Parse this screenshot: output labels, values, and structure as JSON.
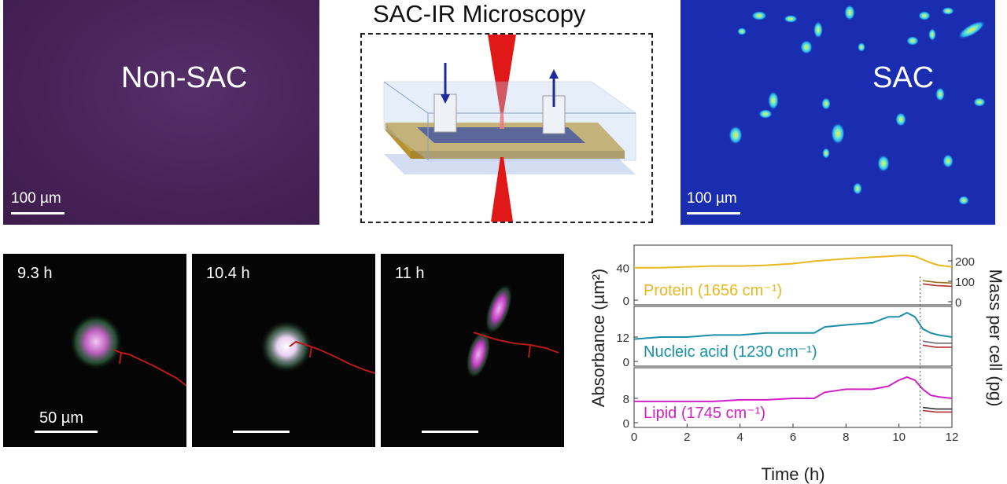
{
  "top": {
    "non_sac": {
      "label": "Non-SAC",
      "scale": "100 µm",
      "bg": "#4a2658"
    },
    "microscopy": {
      "title": "SAC-IR Microscopy"
    },
    "sac": {
      "label": "SAC",
      "scale": "100 µm",
      "bg": "#1a2db0"
    }
  },
  "timelapse": {
    "frames": [
      {
        "time": "9.3 h"
      },
      {
        "time": "10.4 h"
      },
      {
        "time": "11 h"
      }
    ],
    "scale": "50 µm"
  },
  "chart_data": {
    "type": "line",
    "x": [
      0,
      1,
      2,
      3,
      4,
      5,
      6,
      6.8,
      7.2,
      8,
      9,
      9.6,
      10,
      10.3,
      10.6,
      10.9,
      11.2,
      11.5,
      12
    ],
    "xlim": [
      0,
      12
    ],
    "xticks": [
      "0",
      "2",
      "4",
      "6",
      "8",
      "10",
      "12"
    ],
    "xlabel": "Time (h)",
    "ylabel_left": "Absorbance (µm²)",
    "ylabel_right": "Mass per cell (pg)",
    "event_time": 10.8,
    "panels": [
      {
        "series": [
          {
            "name": "Protein (1656 cm⁻¹)",
            "color": "#e8b820",
            "values": [
              40,
              40,
              41,
              42,
              42,
              43,
              45,
              48,
              49,
              51,
              53,
              54,
              55,
              55,
              54,
              50,
              46,
              43,
              41
            ]
          }
        ],
        "ylim": [
          0,
          60
        ],
        "left_ticks": [
          "0",
          "40"
        ],
        "right_ticks": [
          "0",
          "100",
          "200"
        ],
        "mass_after_event": [
          {
            "color": "#b03030",
            "values": [
              20,
              18,
              17
            ]
          },
          {
            "color": "#9a7018",
            "values": [
              24,
              22,
              21
            ]
          }
        ]
      },
      {
        "series": [
          {
            "name": "Nucleic acid (1230 cm⁻¹)",
            "color": "#1a8fa8",
            "values": [
              11,
              12,
              12,
              13,
              13,
              14,
              14,
              14,
              17,
              18,
              19,
              22,
              22,
              24,
              22,
              16,
              14,
              13,
              12
            ]
          }
        ],
        "ylim": [
          0,
          24
        ],
        "left_ticks": [
          "0",
          "12"
        ],
        "right_ticks": [],
        "mass_after_event": [
          {
            "color": "#b03030",
            "values": [
              8,
              7,
              7
            ]
          },
          {
            "color": "#6a6a6a",
            "values": [
              10,
              9,
              9
            ]
          }
        ]
      },
      {
        "series": [
          {
            "name": "Lipid (1745 cm⁻¹)",
            "color": "#d020c8",
            "values": [
              7,
              7,
              7,
              7,
              7.5,
              7.5,
              8,
              8,
              10,
              11,
              11,
              12,
              14,
              15,
              14,
              11,
              9,
              8.5,
              8
            ]
          }
        ],
        "ylim": [
          0,
          16
        ],
        "left_ticks": [
          "0",
          "8"
        ],
        "right_ticks": [],
        "mass_after_event": [
          {
            "color": "#b03030",
            "values": [
              4,
              3.5,
              3.5
            ]
          },
          {
            "color": "#303030",
            "values": [
              5,
              4.5,
              4.5
            ]
          }
        ]
      }
    ]
  }
}
